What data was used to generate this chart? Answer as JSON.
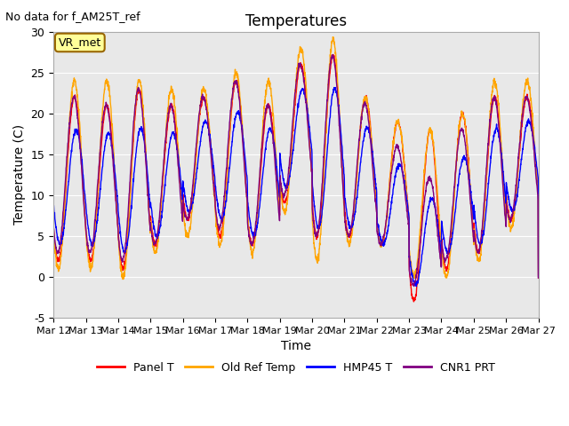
{
  "title": "Temperatures",
  "xlabel": "Time",
  "ylabel": "Temperature (C)",
  "ylim": [
    -5,
    30
  ],
  "yticks": [
    -5,
    0,
    5,
    10,
    15,
    20,
    25,
    30
  ],
  "xtick_labels": [
    "Mar 12",
    "Mar 13",
    "Mar 14",
    "Mar 15",
    "Mar 16",
    "Mar 17",
    "Mar 18",
    "Mar 19",
    "Mar 20",
    "Mar 21",
    "Mar 22",
    "Mar 23",
    "Mar 24",
    "Mar 25",
    "Mar 26",
    "Mar 27"
  ],
  "annotation_text": "No data for f_AM25T_ref",
  "box_label": "VR_met",
  "box_color": "#FFFF99",
  "box_edge_color": "#996600",
  "series_colors": [
    "red",
    "orange",
    "blue",
    "purple"
  ],
  "series_labels": [
    "Panel T",
    "Old Ref Temp",
    "HMP45 T",
    "CNR1 PRT"
  ],
  "bg_color": "#e8e8e8",
  "fig_bg_color": "#ffffff",
  "n_days": 15,
  "pts_per_day": 144,
  "day_peaks": [
    22,
    21,
    23,
    21,
    22,
    24,
    21,
    26,
    27,
    22,
    19,
    18,
    20,
    22,
    22
  ],
  "day_troughs": [
    2,
    2,
    1,
    4,
    7,
    5,
    4,
    9,
    5,
    5,
    4,
    -3,
    1,
    3,
    7
  ],
  "orange_peak_extra": [
    2,
    3,
    1,
    2,
    1,
    1,
    3,
    2,
    2,
    0,
    0,
    0,
    0,
    2,
    2
  ],
  "orange_trough_delta": [
    -1,
    -1,
    -1,
    -1,
    -2,
    -1,
    -1,
    -1,
    -3,
    -1,
    0,
    3,
    -1,
    -1,
    -1
  ],
  "blue_peak_factor": [
    0.8,
    0.82,
    0.78,
    0.8,
    0.8,
    0.8,
    0.83,
    0.82,
    0.82,
    0.78,
    0.65,
    0.6,
    0.72,
    0.8,
    0.8
  ],
  "blue_trough_delta": [
    2,
    2,
    2,
    1,
    1,
    2,
    1,
    2,
    1,
    1,
    0,
    2,
    2,
    1,
    1
  ],
  "purple_peak_factor": [
    1.0,
    1.0,
    1.0,
    1.0,
    1.0,
    1.0,
    1.0,
    1.0,
    1.0,
    0.95,
    0.8,
    0.72,
    0.9,
    1.0,
    1.0
  ],
  "purple_trough_delta": [
    1,
    1,
    1,
    0,
    0,
    1,
    0,
    1,
    0,
    0,
    0,
    2,
    1,
    0,
    0
  ],
  "peak_phase": 0.65,
  "trough_phase": 0.15
}
